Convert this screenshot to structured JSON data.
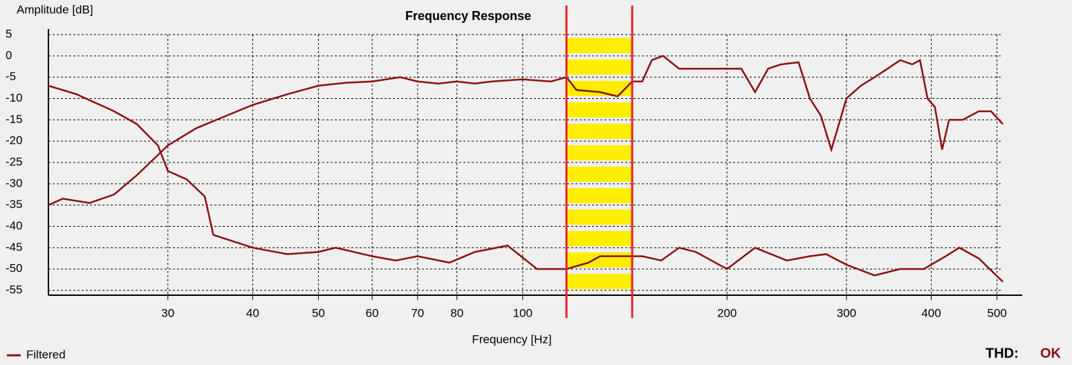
{
  "chart_data": {
    "type": "line",
    "title": "Frequency Response",
    "x_label": "Frequency [Hz]",
    "y_label": "Amplitude [dB]",
    "log_x": true,
    "grid": true,
    "xlim": [
      20,
      510
    ],
    "ylim": [
      -55,
      5
    ],
    "xticks": [
      30,
      40,
      50,
      60,
      70,
      80,
      100,
      200,
      300,
      400,
      500
    ],
    "yticks": [
      5,
      0,
      -5,
      -10,
      -15,
      -20,
      -25,
      -30,
      -35,
      -40,
      -45,
      -50,
      -55
    ],
    "highlight_range": [
      116,
      145
    ],
    "highlight_color": "#ffee00",
    "marker_color": "#e8202a",
    "series": [
      {
        "name": "Filtered",
        "color": "#8b0f0f",
        "x": [
          20,
          21,
          23,
          25,
          27,
          30,
          33,
          36,
          40,
          45,
          50,
          55,
          60,
          66,
          70,
          75,
          80,
          85,
          90,
          100,
          110,
          116,
          120,
          130,
          138,
          145,
          150,
          155,
          161,
          170,
          180,
          195,
          210,
          220,
          230,
          240,
          255,
          265,
          275,
          285,
          300,
          315,
          330,
          345,
          360,
          375,
          385,
          395,
          405,
          415,
          425,
          445,
          470,
          490,
          510
        ],
        "values": [
          -35,
          -33.5,
          -34.5,
          -32.5,
          -28,
          -21,
          -17,
          -14.5,
          -11.5,
          -9,
          -7,
          -6.3,
          -6,
          -5,
          -6,
          -6.5,
          -6,
          -6.5,
          -6,
          -5.5,
          -6,
          -5,
          -8,
          -8.5,
          -9.5,
          -6,
          -6,
          -1,
          0,
          -3,
          -3,
          -3,
          -3,
          -8.5,
          -3,
          -2,
          -1.5,
          -10,
          -14,
          -22,
          -10,
          -7,
          -5,
          -3,
          -1,
          -2,
          -1,
          -10,
          -12,
          -22,
          -15,
          -15,
          -13,
          -13,
          -16
        ]
      },
      {
        "color": "#8b0f0f",
        "x": [
          20,
          22,
          25,
          27,
          29,
          30,
          32,
          34,
          35,
          40,
          45,
          50,
          53,
          60,
          65,
          70,
          78,
          85,
          95,
          105,
          116,
          125,
          130,
          150,
          160,
          170,
          180,
          200,
          220,
          245,
          265,
          280,
          300,
          330,
          360,
          390,
          420,
          440,
          470,
          510
        ],
        "values": [
          -7,
          -9,
          -13,
          -16,
          -21,
          -27,
          -29,
          -33,
          -42,
          -45,
          -46.5,
          -46,
          -45,
          -47,
          -48,
          -47,
          -48.5,
          -46,
          -44.5,
          -50,
          -50,
          -48.5,
          -47,
          -47,
          -48,
          -45,
          -46,
          -50,
          -45,
          -48,
          -47,
          -46.5,
          -49,
          -51.5,
          -50,
          -50,
          -47,
          -45,
          -47.5,
          -53
        ]
      }
    ]
  },
  "status": {
    "label": "THD:",
    "value": "OK"
  }
}
